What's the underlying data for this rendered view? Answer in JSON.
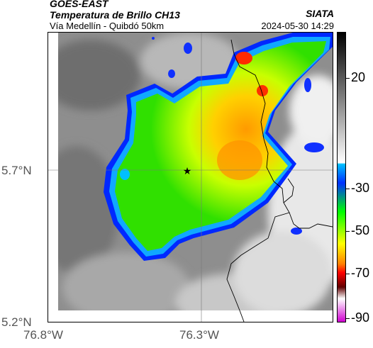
{
  "header": {
    "title_line1": "GOES-EAST",
    "title_line2": "Temperatura de Brillo CH13",
    "subtitle": "Vía Medellín - Quibdó 50km",
    "organization": "SIATA",
    "timestamp": "2024-05-30 14:29"
  },
  "map": {
    "y_ticks": [
      "5.7°N",
      "5.2°N"
    ],
    "x_ticks": [
      "76.8°W",
      "76.3°W"
    ],
    "marker": "star",
    "gridlines": true
  },
  "colorbar": {
    "ticks": [
      "20",
      "-30",
      "-50",
      "-70",
      "-90"
    ],
    "colors": [
      "#000000",
      "#ffffff",
      "#00bfff",
      "#0030ff",
      "#00ff00",
      "#ffff00",
      "#ff8000",
      "#ff0000",
      "#600000",
      "#ffffff",
      "#d000d0"
    ]
  }
}
